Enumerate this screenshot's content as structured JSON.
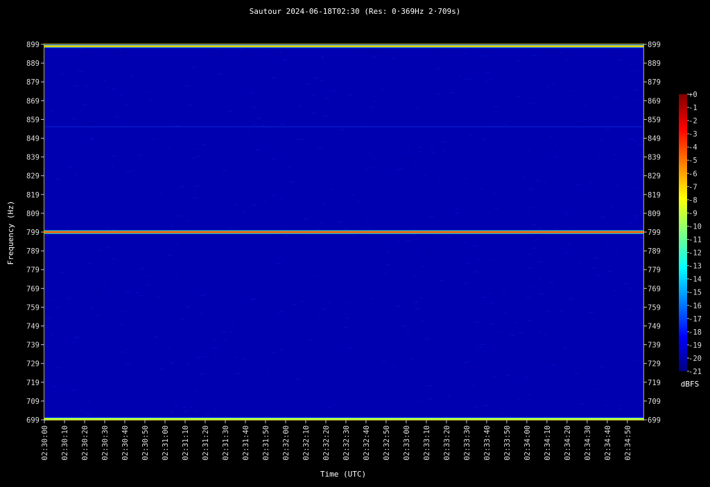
{
  "chart_data": {
    "type": "heatmap",
    "title": "Sautour 2024-06-18T02:30 (Res: 0·369Hz 2·709s)",
    "xlabel": "Time (UTC)",
    "ylabel": "Frequency (Hz)",
    "x_ticks": [
      "02:30:00",
      "02:30:10",
      "02:30:20",
      "02:30:30",
      "02:30:40",
      "02:30:50",
      "02:31:00",
      "02:31:10",
      "02:31:20",
      "02:31:30",
      "02:31:40",
      "02:31:50",
      "02:32:00",
      "02:32:10",
      "02:32:20",
      "02:32:30",
      "02:32:40",
      "02:32:50",
      "02:33:00",
      "02:33:10",
      "02:33:20",
      "02:33:30",
      "02:33:40",
      "02:33:50",
      "02:34:00",
      "02:34:10",
      "02:34:20",
      "02:34:30",
      "02:34:40",
      "02:34:50"
    ],
    "xlim_seconds": [
      0,
      298
    ],
    "y_ticks": [
      899,
      889,
      879,
      869,
      859,
      849,
      839,
      829,
      819,
      809,
      799,
      789,
      779,
      769,
      759,
      749,
      739,
      729,
      719,
      709,
      699
    ],
    "ylim": [
      699,
      899
    ],
    "signal_lines_hz": [
      {
        "frequency": 898,
        "level_dbfs": -6
      },
      {
        "frequency": 799,
        "level_dbfs": -3
      },
      {
        "frequency": 699.5,
        "level_dbfs": -8
      }
    ],
    "background_level_dbfs": -20,
    "colorbar": {
      "label": "dBFS",
      "min": -21,
      "max": 0,
      "tick_labels": [
        "+0",
        "-1",
        "-2",
        "-3",
        "-4",
        "-5",
        "-6",
        "-7",
        "-8",
        "-9",
        "-10",
        "-11",
        "-12",
        "-13",
        "-14",
        "-15",
        "-16",
        "-17",
        "-18",
        "-19",
        "-20",
        "-21"
      ],
      "colors": [
        "#00007f",
        "#0000ff",
        "#0080ff",
        "#00ffff",
        "#80ff80",
        "#ffff00",
        "#ff8000",
        "#ff0000",
        "#7f0000"
      ]
    },
    "frame_color": "#c8b400"
  }
}
